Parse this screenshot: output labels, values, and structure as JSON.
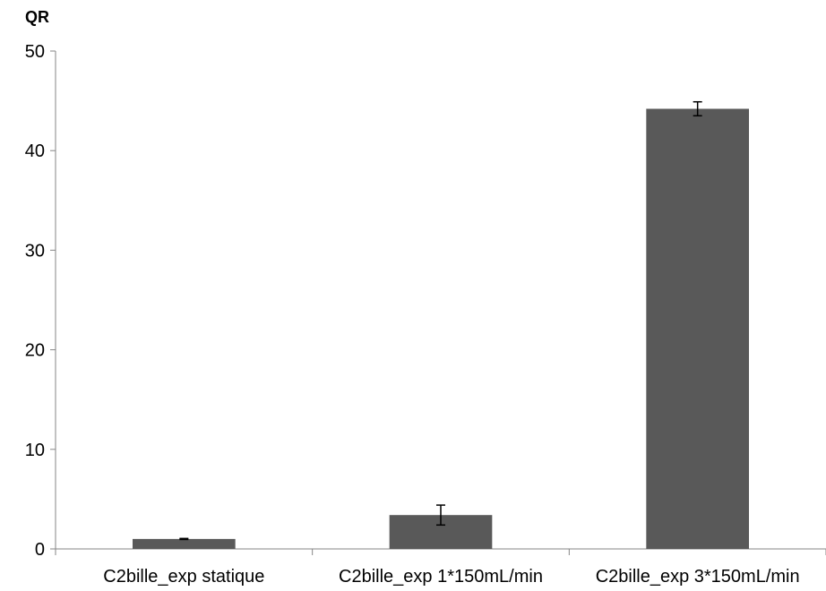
{
  "chart_data": {
    "type": "bar",
    "title": "",
    "xlabel": "",
    "ylabel": "QR",
    "ylim": [
      0,
      50
    ],
    "yticks": [
      0,
      10,
      20,
      30,
      40,
      50
    ],
    "grid": false,
    "legend": "none",
    "bar_color": "#595959",
    "categories": [
      "C2bille_exp statique",
      "C2bille_exp 1*150mL/min",
      "C2bille_exp 3*150mL/min"
    ],
    "values": [
      1.0,
      3.4,
      44.2
    ],
    "error": [
      0.05,
      1.0,
      0.7
    ]
  }
}
